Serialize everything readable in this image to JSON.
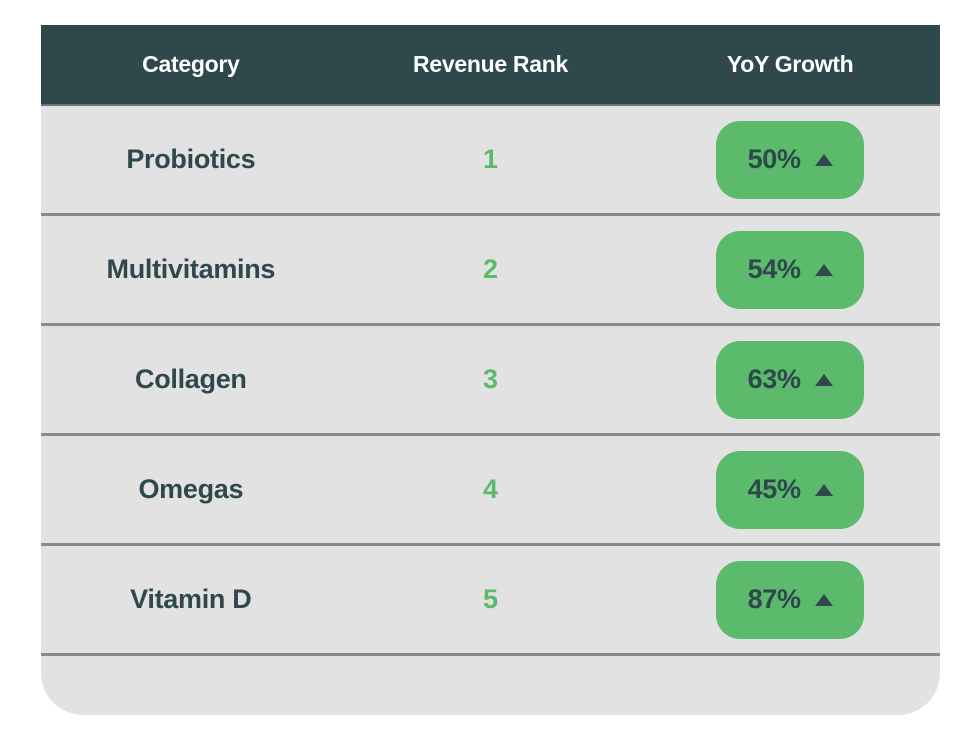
{
  "chart_data": {
    "type": "table",
    "title": "",
    "columns": [
      "Category",
      "Revenue Rank",
      "YoY Growth"
    ],
    "categories": [
      "Probiotics",
      "Multivitamins",
      "Collagen",
      "Omegas",
      "Vitamin D"
    ],
    "series": [
      {
        "name": "Revenue Rank",
        "values": [
          1,
          2,
          3,
          4,
          5
        ]
      },
      {
        "name": "YoY Growth %",
        "values": [
          50,
          54,
          63,
          45,
          87
        ]
      }
    ],
    "growth_direction": [
      "up",
      "up",
      "up",
      "up",
      "up"
    ]
  },
  "table": {
    "columns": [
      "Category",
      "Revenue Rank",
      "YoY Growth"
    ],
    "rows": [
      {
        "category": "Probiotics",
        "rank": "1",
        "growth": "50%"
      },
      {
        "category": "Multivitamins",
        "rank": "2",
        "growth": "54%"
      },
      {
        "category": "Collagen",
        "rank": "3",
        "growth": "63%"
      },
      {
        "category": "Omegas",
        "rank": "4",
        "growth": "45%"
      },
      {
        "category": "Vitamin D",
        "rank": "5",
        "growth": "87%"
      }
    ]
  },
  "icons": {
    "growth_arrow": "up-arrow-icon"
  },
  "colors": {
    "header_background": "#2e484c",
    "header_text": "#ffffff",
    "row_background": "#e2e2e3",
    "divider": "#8a8a8a",
    "accent_green": "#5cba6c",
    "dark_text": "#2e484c",
    "page_background": "#ffffff"
  }
}
